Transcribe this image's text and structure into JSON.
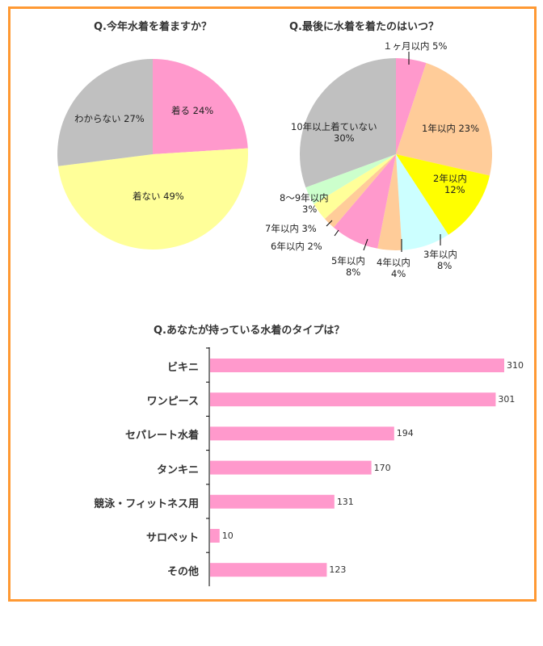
{
  "chart_data": [
    {
      "type": "pie",
      "title": "Q.今年水着を着ますか？",
      "labels": [
        "着る",
        "着ない",
        "わからない"
      ],
      "values": [
        24,
        49,
        27
      ],
      "colors": [
        "#ff99cc",
        "#ffff99",
        "#c0c0c0"
      ]
    },
    {
      "type": "pie",
      "title": "Q.最後に水着を着たのはいつ？",
      "labels": [
        "１ヶ月以内",
        "1年以内",
        "2年以内",
        "3年以内",
        "4年以内",
        "5年以内",
        "6年以内",
        "7年以内",
        "8～9年以内",
        "10年以上着ていない"
      ],
      "values": [
        5,
        23,
        12,
        8,
        4,
        8,
        2,
        3,
        3,
        30
      ],
      "colors": [
        "#ff99cc",
        "#ffcc99",
        "#ffff00",
        "#ccffff",
        "#ffcc99",
        "#ff99cc",
        "#ffcc99",
        "#ffff99",
        "#ccffcc",
        "#c0c0c0"
      ]
    },
    {
      "type": "bar",
      "orientation": "horizontal",
      "title": "Q.あなたが持っている水着のタイプは？",
      "categories": [
        "ビキニ",
        "ワンピース",
        "セパレート水着",
        "タンキニ",
        "競泳・フィットネス用",
        "サロペット",
        "その他"
      ],
      "values": [
        310,
        301,
        194,
        170,
        131,
        10,
        123
      ],
      "color": "#ff99cc",
      "xlim": [
        0,
        310
      ]
    }
  ],
  "labels": {
    "p1": [
      "着る 24%",
      "着ない 49%",
      "わからない 27%"
    ],
    "p2": [
      "１ヶ月以内 5%",
      "1年以内 23%",
      "2年以内",
      "12%",
      "3年以内",
      "8%",
      "4年以内",
      "4%",
      "5年以内",
      "8%",
      "6年以内 2%",
      "7年以内 3%",
      "8～9年以内",
      "3%",
      "10年以上着ていない",
      "30%"
    ]
  },
  "border_color": "#ff9933"
}
